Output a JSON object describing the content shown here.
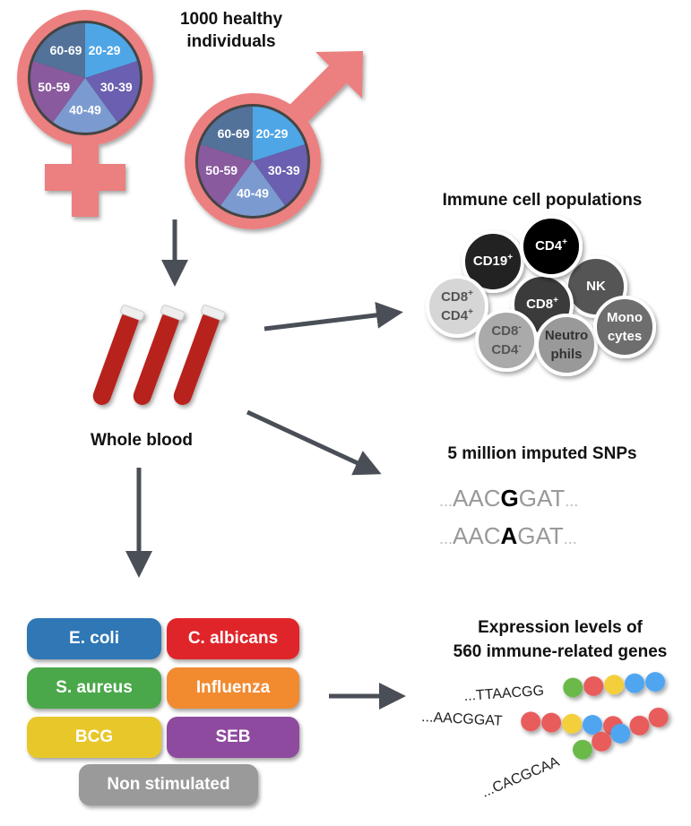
{
  "cohort": {
    "title_line1": "1000 healthy",
    "title_line2": "individuals",
    "age_groups": [
      "20-29",
      "30-39",
      "40-49",
      "50-59",
      "60-69"
    ],
    "age_colors": [
      "#4ea6e6",
      "#6a5fb0",
      "#7b9bd0",
      "#8a5a9e",
      "#52729a"
    ],
    "symbol_color": "#ec7f7f"
  },
  "sample": {
    "label": "Whole blood"
  },
  "immune": {
    "title": "Immune cell populations",
    "cells": [
      {
        "line1": "CD19",
        "sup1": "+"
      },
      {
        "line1": "CD4",
        "sup1": "+"
      },
      {
        "line1": "NK"
      },
      {
        "line1": "CD8",
        "sup1": "+",
        "line2": "CD4",
        "sup2": "+"
      },
      {
        "line1": "CD8",
        "sup1": "+"
      },
      {
        "line1": "CD8",
        "sup1": "-",
        "line2": "CD4",
        "sup2": "-"
      },
      {
        "line1": "Neutro",
        "line2": "phils"
      },
      {
        "line1": "Mono",
        "line2": "cytes"
      }
    ]
  },
  "snps": {
    "title": "5 million imputed SNPs",
    "seq1": {
      "pre": "AAC",
      "allele": "G",
      "post": "GAT"
    },
    "seq2": {
      "pre": "AAC",
      "allele": "A",
      "post": "GAT"
    },
    "ellipsis": "..."
  },
  "stimuli": {
    "items": [
      {
        "label": "E. coli",
        "color": "#2f77b5"
      },
      {
        "label": "C. albicans",
        "color": "#e0252a"
      },
      {
        "label": "S. aureus",
        "color": "#4aa84a"
      },
      {
        "label": "Influenza",
        "color": "#f28a30"
      },
      {
        "label": "BCG",
        "color": "#e8c72a"
      },
      {
        "label": "SEB",
        "color": "#8e4a9e"
      },
      {
        "label": "Non stimulated",
        "color": "#9a9a9a"
      }
    ]
  },
  "expression": {
    "title_line1": "Expression levels of",
    "title_line2": "560 immune-related genes",
    "rows": [
      {
        "seq": "...TTAACGG",
        "dots": [
          "#6ab94a",
          "#e85c5c",
          "#f3cf3a",
          "#4fa5f0",
          "#4fa5f0"
        ]
      },
      {
        "seq": "...AACGGAT",
        "dots": [
          "#e85c5c",
          "#e85c5c",
          "#f3cf3a",
          "#4fa5f0",
          "#e85c5c"
        ]
      },
      {
        "seq": "...CACGCAA",
        "dots": [
          "#6ab94a",
          "#e85c5c",
          "#4fa5f0",
          "#e85c5c",
          "#e85c5c"
        ]
      }
    ]
  }
}
